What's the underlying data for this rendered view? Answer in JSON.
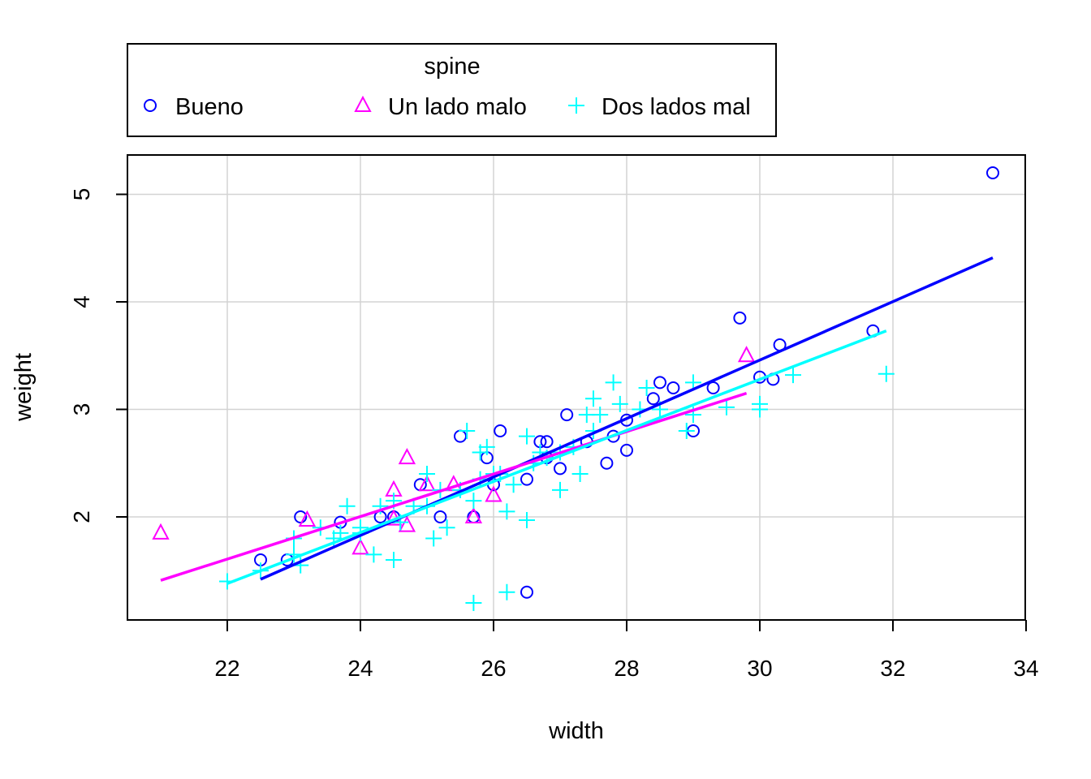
{
  "chart_data": {
    "type": "scatter",
    "xlabel": "width",
    "ylabel": "weight",
    "xlim": [
      20.5,
      34
    ],
    "ylim": [
      1.0,
      5.3
    ],
    "x_ticks": [
      22,
      24,
      26,
      28,
      30,
      32,
      34
    ],
    "y_ticks": [
      2,
      3,
      4,
      5
    ],
    "grid": true,
    "legend": {
      "title": "spine",
      "position": "top-outside",
      "entries": [
        "Bueno",
        "Un lado malo",
        "Dos lados mal"
      ]
    },
    "series": [
      {
        "name": "Bueno",
        "marker": "circle",
        "color": "#0000FF",
        "points": [
          [
            22.5,
            1.6
          ],
          [
            22.9,
            1.6
          ],
          [
            23.1,
            2.0
          ],
          [
            23.7,
            1.95
          ],
          [
            24.3,
            2.0
          ],
          [
            24.5,
            2.0
          ],
          [
            24.9,
            2.3
          ],
          [
            25.2,
            2.0
          ],
          [
            25.5,
            2.75
          ],
          [
            25.7,
            2.0
          ],
          [
            25.9,
            2.55
          ],
          [
            26.0,
            2.3
          ],
          [
            26.1,
            2.8
          ],
          [
            26.5,
            2.35
          ],
          [
            26.5,
            1.3
          ],
          [
            26.7,
            2.7
          ],
          [
            26.8,
            2.7
          ],
          [
            26.8,
            2.55
          ],
          [
            27.0,
            2.45
          ],
          [
            27.1,
            2.95
          ],
          [
            27.4,
            2.7
          ],
          [
            27.7,
            2.5
          ],
          [
            27.8,
            2.75
          ],
          [
            28.0,
            2.9
          ],
          [
            28.0,
            2.62
          ],
          [
            28.4,
            3.1
          ],
          [
            28.5,
            3.25
          ],
          [
            28.7,
            3.2
          ],
          [
            29.0,
            2.8
          ],
          [
            29.3,
            3.2
          ],
          [
            29.7,
            3.85
          ],
          [
            30.0,
            3.3
          ],
          [
            30.2,
            3.28
          ],
          [
            30.3,
            3.6
          ],
          [
            31.7,
            3.73
          ],
          [
            33.5,
            5.2
          ]
        ],
        "fit": [
          [
            22.5,
            1.42
          ],
          [
            33.5,
            4.41
          ]
        ]
      },
      {
        "name": "Un lado malo",
        "marker": "triangle",
        "color": "#FF00FF",
        "points": [
          [
            21.0,
            1.85
          ],
          [
            23.2,
            1.97
          ],
          [
            24.0,
            1.71
          ],
          [
            24.5,
            2.25
          ],
          [
            24.5,
            1.98
          ],
          [
            24.7,
            2.55
          ],
          [
            24.7,
            1.92
          ],
          [
            25.0,
            2.3
          ],
          [
            25.4,
            2.3
          ],
          [
            25.7,
            2.0
          ],
          [
            26.0,
            2.2
          ],
          [
            29.8,
            3.5
          ]
        ],
        "fit": [
          [
            21.0,
            1.41
          ],
          [
            29.8,
            3.15
          ]
        ]
      },
      {
        "name": "Dos lados mal",
        "marker": "plus",
        "color": "#00FFFF",
        "points": [
          [
            22.0,
            1.4
          ],
          [
            22.5,
            1.5
          ],
          [
            23.0,
            1.65
          ],
          [
            23.0,
            1.8
          ],
          [
            23.1,
            1.55
          ],
          [
            23.4,
            1.9
          ],
          [
            23.6,
            1.8
          ],
          [
            23.7,
            1.85
          ],
          [
            23.8,
            2.1
          ],
          [
            24.0,
            1.9
          ],
          [
            24.0,
            1.85
          ],
          [
            24.2,
            1.65
          ],
          [
            24.3,
            2.1
          ],
          [
            24.5,
            1.6
          ],
          [
            24.5,
            2.15
          ],
          [
            24.6,
            1.95
          ],
          [
            24.8,
            2.1
          ],
          [
            25.0,
            2.4
          ],
          [
            25.0,
            2.1
          ],
          [
            25.1,
            1.8
          ],
          [
            25.2,
            2.25
          ],
          [
            25.3,
            1.9
          ],
          [
            25.5,
            2.25
          ],
          [
            25.6,
            2.8
          ],
          [
            25.7,
            1.2
          ],
          [
            25.7,
            2.15
          ],
          [
            25.8,
            2.6
          ],
          [
            25.8,
            2.35
          ],
          [
            25.9,
            2.65
          ],
          [
            26.0,
            2.4
          ],
          [
            26.1,
            2.4
          ],
          [
            26.2,
            2.05
          ],
          [
            26.2,
            1.3
          ],
          [
            26.3,
            2.3
          ],
          [
            26.5,
            2.75
          ],
          [
            26.5,
            1.97
          ],
          [
            26.6,
            2.5
          ],
          [
            26.7,
            2.6
          ],
          [
            26.8,
            2.55
          ],
          [
            27.0,
            2.25
          ],
          [
            27.0,
            2.6
          ],
          [
            27.2,
            2.65
          ],
          [
            27.3,
            2.4
          ],
          [
            27.4,
            2.95
          ],
          [
            27.5,
            3.1
          ],
          [
            27.5,
            2.8
          ],
          [
            27.6,
            2.95
          ],
          [
            27.8,
            3.25
          ],
          [
            27.9,
            3.05
          ],
          [
            28.2,
            3.0
          ],
          [
            28.3,
            3.2
          ],
          [
            28.5,
            3.0
          ],
          [
            28.9,
            2.8
          ],
          [
            29.0,
            3.25
          ],
          [
            29.0,
            2.95
          ],
          [
            29.5,
            3.02
          ],
          [
            30.0,
            3.0
          ],
          [
            30.0,
            3.05
          ],
          [
            30.5,
            3.32
          ],
          [
            31.9,
            3.33
          ]
        ],
        "fit": [
          [
            22.0,
            1.38
          ],
          [
            31.9,
            3.73
          ]
        ]
      }
    ]
  }
}
